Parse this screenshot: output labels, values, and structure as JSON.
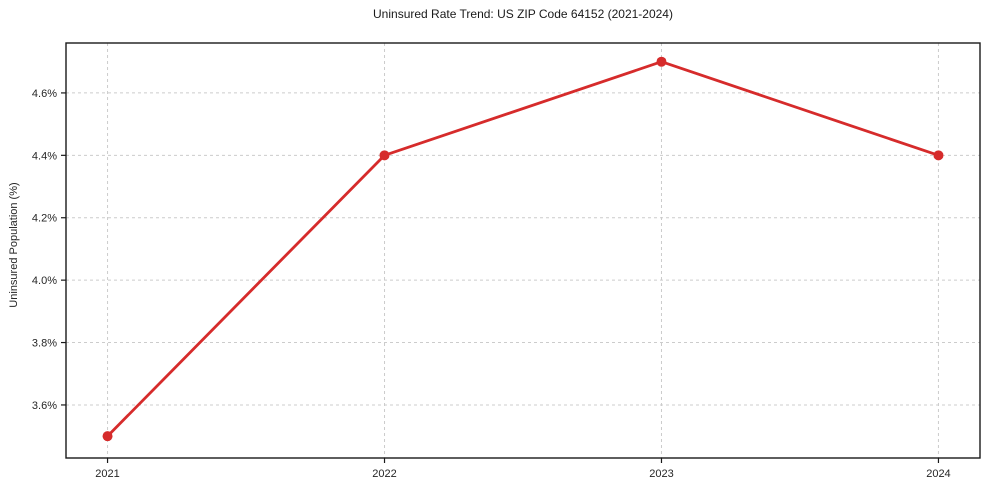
{
  "chart_data": {
    "type": "line",
    "title": "Uninsured Rate Trend: US ZIP Code 64152 (2021-2024)",
    "xlabel": "",
    "ylabel": "Uninsured Population (%)",
    "x": [
      2021,
      2022,
      2023,
      2024
    ],
    "xtick_labels": [
      "2021",
      "2022",
      "2023",
      "2024"
    ],
    "series": [
      {
        "name": "Uninsured rate",
        "values": [
          3.5,
          4.4,
          4.7,
          4.4
        ]
      }
    ],
    "yticks": [
      3.6,
      3.8,
      4.0,
      4.2,
      4.4,
      4.6
    ],
    "ytick_labels": [
      "3.6%",
      "3.8%",
      "4.0%",
      "4.2%",
      "4.4%",
      "4.6%"
    ],
    "ylim": [
      3.43,
      4.76
    ],
    "xlim": [
      2020.85,
      2024.15
    ],
    "grid": true,
    "grid_style": "dashed",
    "legend_position": "none",
    "colors": {
      "line": "#d62b2b",
      "marker": "#d62b2b",
      "grid": "#cccccc",
      "axis": "#1a1a1a",
      "tick_text": "#262626"
    }
  }
}
